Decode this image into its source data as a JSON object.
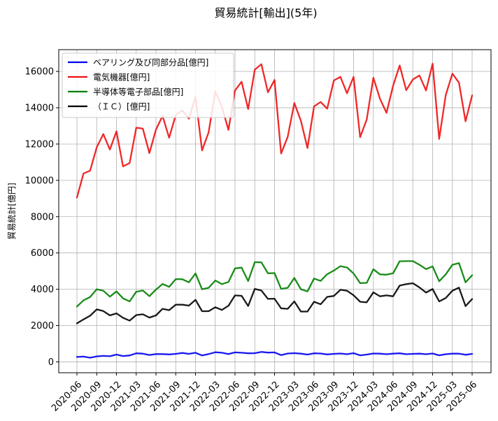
{
  "chart_data": {
    "type": "line",
    "title": "貿易統計[輸出](5年)",
    "xlabel": "",
    "ylabel": "貿易統計[億円]",
    "ylim": [
      -600,
      17200
    ],
    "yticks": [
      0,
      2000,
      4000,
      6000,
      8000,
      10000,
      12000,
      14000,
      16000
    ],
    "ytick_labels": [
      "0",
      "2000",
      "4000",
      "6000",
      "8000",
      "10000",
      "12000",
      "14000",
      "16000"
    ],
    "grid": true,
    "legend_position": "top-left",
    "x": [
      "2020-06",
      "2020-07",
      "2020-08",
      "2020-09",
      "2020-10",
      "2020-11",
      "2020-12",
      "2021-01",
      "2021-02",
      "2021-03",
      "2021-04",
      "2021-05",
      "2021-06",
      "2021-07",
      "2021-08",
      "2021-09",
      "2021-10",
      "2021-11",
      "2021-12",
      "2022-01",
      "2022-02",
      "2022-03",
      "2022-04",
      "2022-05",
      "2022-06",
      "2022-07",
      "2022-08",
      "2022-09",
      "2022-10",
      "2022-11",
      "2022-12",
      "2023-01",
      "2023-02",
      "2023-03",
      "2023-04",
      "2023-05",
      "2023-06",
      "2023-07",
      "2023-08",
      "2023-09",
      "2023-10",
      "2023-11",
      "2023-12",
      "2024-01",
      "2024-02",
      "2024-03",
      "2024-04",
      "2024-05",
      "2024-06",
      "2024-07",
      "2024-08",
      "2024-09",
      "2024-10",
      "2024-11",
      "2024-12",
      "2025-01",
      "2025-02",
      "2025-03",
      "2025-04",
      "2025-05",
      "2025-06"
    ],
    "xtick_labels": [
      "2020-06",
      "2020-09",
      "2020-12",
      "2021-03",
      "2021-06",
      "2021-09",
      "2021-12",
      "2022-03",
      "2022-06",
      "2022-09",
      "2022-12",
      "2023-03",
      "2023-06",
      "2023-09",
      "2023-12",
      "2024-03",
      "2024-06",
      "2024-09",
      "2024-12",
      "2025-03",
      "2025-06"
    ],
    "series": [
      {
        "name": "ベアリング及び同部分品[億円]",
        "color": "#0000ee",
        "values": [
          270,
          290,
          230,
          300,
          330,
          310,
          400,
          320,
          350,
          470,
          450,
          380,
          430,
          430,
          410,
          440,
          490,
          440,
          500,
          350,
          430,
          530,
          500,
          430,
          520,
          500,
          470,
          480,
          550,
          510,
          520,
          370,
          460,
          480,
          450,
          400,
          470,
          460,
          410,
          440,
          460,
          420,
          480,
          360,
          400,
          460,
          450,
          420,
          450,
          470,
          420,
          440,
          450,
          420,
          460,
          360,
          420,
          450,
          450,
          390,
          440
        ]
      },
      {
        "name": "電気機器[億円]",
        "color": "#ee1111",
        "values": [
          9050,
          10380,
          10530,
          11820,
          12550,
          11700,
          12700,
          10770,
          10950,
          12900,
          12850,
          11500,
          12800,
          13550,
          12350,
          13600,
          13850,
          13400,
          14600,
          11650,
          12650,
          14900,
          14050,
          12780,
          14950,
          15430,
          13930,
          16100,
          16400,
          14850,
          15530,
          11480,
          12390,
          14260,
          13280,
          11780,
          14070,
          14320,
          13950,
          15500,
          15700,
          14800,
          15700,
          12380,
          13350,
          15650,
          14500,
          13720,
          15210,
          16330,
          14970,
          15560,
          15780,
          14950,
          16430,
          12280,
          14700,
          15880,
          15380,
          13250,
          14680
        ]
      },
      {
        "name": "半導体等電子部品[億円]",
        "color": "#008000",
        "values": [
          3050,
          3390,
          3570,
          4000,
          3920,
          3590,
          3880,
          3500,
          3330,
          3860,
          3930,
          3620,
          3980,
          4290,
          4130,
          4560,
          4550,
          4380,
          4870,
          4000,
          4080,
          4480,
          4280,
          4400,
          5150,
          5190,
          4450,
          5490,
          5480,
          4880,
          4890,
          4020,
          4080,
          4620,
          4000,
          3880,
          4590,
          4460,
          4830,
          5030,
          5270,
          5200,
          4870,
          4340,
          4350,
          5100,
          4820,
          4800,
          4880,
          5540,
          5550,
          5550,
          5350,
          5110,
          5260,
          4440,
          4820,
          5350,
          5440,
          4380,
          4770
        ]
      },
      {
        "name": "（ＩＣ）[億円]",
        "color": "#000000",
        "values": [
          2120,
          2340,
          2540,
          2890,
          2800,
          2560,
          2670,
          2430,
          2270,
          2580,
          2620,
          2440,
          2560,
          2920,
          2850,
          3150,
          3150,
          3100,
          3420,
          2790,
          2790,
          3010,
          2860,
          3090,
          3660,
          3640,
          3080,
          4020,
          3930,
          3470,
          3480,
          2950,
          2920,
          3330,
          2770,
          2770,
          3310,
          3170,
          3580,
          3630,
          3970,
          3920,
          3670,
          3310,
          3280,
          3830,
          3610,
          3660,
          3610,
          4200,
          4280,
          4330,
          4100,
          3820,
          4010,
          3330,
          3520,
          3920,
          4090,
          3070,
          3460
        ]
      }
    ]
  }
}
